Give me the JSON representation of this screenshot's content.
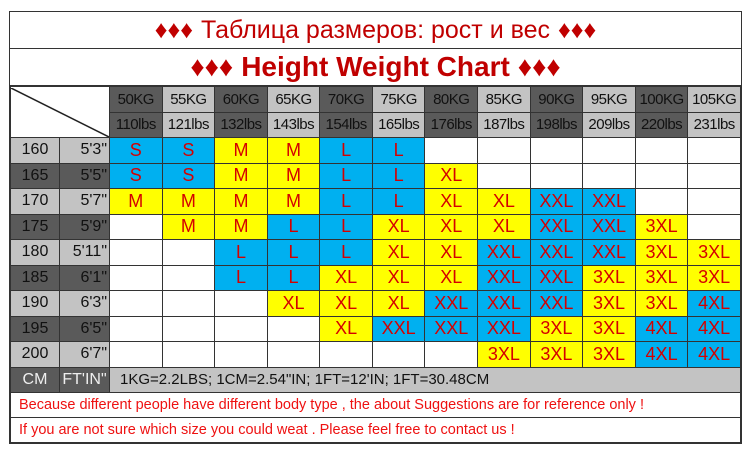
{
  "title_ru": "Таблица размеров: рост и вес",
  "title_en": "Height Weight Chart",
  "diamonds_small": "♦♦♦",
  "diamonds_large": "♦♦♦",
  "weights_kg": [
    "50KG",
    "55KG",
    "60KG",
    "65KG",
    "70KG",
    "75KG",
    "80KG",
    "85KG",
    "90KG",
    "95KG",
    "100KG",
    "105KG"
  ],
  "weights_lbs": [
    "110lbs",
    "121lbs",
    "132lbs",
    "143lbs",
    "154lbs",
    "165lbs",
    "176lbs",
    "187lbs",
    "198lbs",
    "209lbs",
    "220lbs",
    "231lbs"
  ],
  "size_colors": {
    "S": "#00b0f0",
    "M": "#ffff00",
    "L": "#00b0f0",
    "XL": "#ffff00",
    "XXL": "#00b0f0",
    "3XL": "#ffff00",
    "4XL": "#00b0f0"
  },
  "rows": [
    {
      "cm": "160",
      "ft": "5'3\"",
      "sizes": [
        "S",
        "S",
        "M",
        "M",
        "L",
        "L",
        "",
        "",
        "",
        "",
        "",
        ""
      ]
    },
    {
      "cm": "165",
      "ft": "5'5\"",
      "sizes": [
        "S",
        "S",
        "M",
        "M",
        "L",
        "L",
        "XL",
        "",
        "",
        "",
        "",
        ""
      ]
    },
    {
      "cm": "170",
      "ft": "5'7\"",
      "sizes": [
        "M",
        "M",
        "M",
        "M",
        "L",
        "L",
        "XL",
        "XL",
        "XXL",
        "XXL",
        "",
        ""
      ]
    },
    {
      "cm": "175",
      "ft": "5'9\"",
      "sizes": [
        "",
        "M",
        "M",
        "L",
        "L",
        "XL",
        "XL",
        "XL",
        "XXL",
        "XXL",
        "3XL",
        ""
      ]
    },
    {
      "cm": "180",
      "ft": "5'11\"",
      "sizes": [
        "",
        "",
        "L",
        "L",
        "L",
        "XL",
        "XL",
        "XXL",
        "XXL",
        "XXL",
        "3XL",
        "3XL"
      ]
    },
    {
      "cm": "185",
      "ft": "6'1\"",
      "sizes": [
        "",
        "",
        "L",
        "L",
        "XL",
        "XL",
        "XL",
        "XXL",
        "XXL",
        "3XL",
        "3XL",
        "3XL"
      ]
    },
    {
      "cm": "190",
      "ft": "6'3\"",
      "sizes": [
        "",
        "",
        "",
        "XL",
        "XL",
        "XL",
        "XXL",
        "XXL",
        "XXL",
        "3XL",
        "3XL",
        "4XL"
      ]
    },
    {
      "cm": "195",
      "ft": "6'5\"",
      "sizes": [
        "",
        "",
        "",
        "",
        "XL",
        "XXL",
        "XXL",
        "XXL",
        "3XL",
        "3XL",
        "4XL",
        "4XL"
      ]
    },
    {
      "cm": "200",
      "ft": "6'7\"",
      "sizes": [
        "",
        "",
        "",
        "",
        "",
        "",
        "",
        "3XL",
        "3XL",
        "3XL",
        "4XL",
        "4XL"
      ]
    }
  ],
  "footer": {
    "cm_label": "CM",
    "ft_label": "FT'IN\"",
    "conversion": "1KG=2.2LBS;  1CM=2.54\"IN;  1FT=12'IN;  1FT=30.48CM",
    "note1": "Because different people have different body type , the about Suggestions are for reference only !",
    "note2": "If you are not sure which size you could weat . Please feel free to contact us !"
  }
}
